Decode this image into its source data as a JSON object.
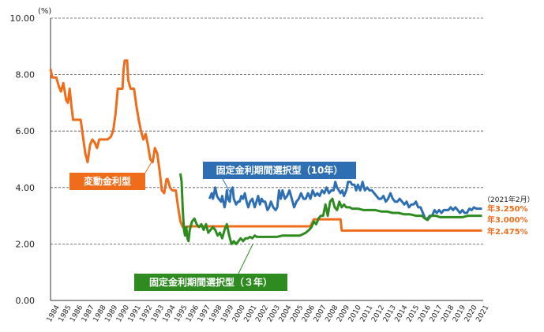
{
  "chart_data": {
    "type": "line",
    "title": "",
    "xlabel": "",
    "ylabel": "",
    "y_unit": "(%)",
    "ylim": [
      0,
      10
    ],
    "y_ticks": [
      "0.00",
      "2.00",
      "4.00",
      "6.00",
      "8.00",
      "10.00"
    ],
    "xlim": [
      1984,
      2021.3
    ],
    "x_ticks": [
      "1984",
      "1985",
      "1986",
      "1987",
      "1988",
      "1989",
      "1990",
      "1991",
      "1992",
      "1993",
      "1994",
      "1995",
      "1996",
      "1997",
      "1998",
      "1999",
      "2000",
      "2001",
      "2002",
      "2003",
      "2004",
      "2005",
      "2006",
      "2007",
      "2008",
      "2009",
      "2010",
      "2011",
      "2012",
      "2013",
      "2014",
      "2015",
      "2016",
      "2017",
      "2018",
      "2019",
      "2020",
      "2021"
    ],
    "grid": "horizontal dashed",
    "series": [
      {
        "name": "変動金利型",
        "color": "#ee6c1a",
        "end_label": "年2.475%",
        "points": [
          [
            1984.0,
            8.2
          ],
          [
            1984.15,
            7.9
          ],
          [
            1984.5,
            7.9
          ],
          [
            1984.7,
            7.6
          ],
          [
            1984.9,
            7.4
          ],
          [
            1985.1,
            7.7
          ],
          [
            1985.35,
            7.1
          ],
          [
            1985.5,
            7.0
          ],
          [
            1985.65,
            7.5
          ],
          [
            1985.8,
            6.9
          ],
          [
            1985.95,
            6.4
          ],
          [
            1986.3,
            6.4
          ],
          [
            1986.6,
            6.4
          ],
          [
            1986.8,
            5.8
          ],
          [
            1987.0,
            5.2
          ],
          [
            1987.2,
            4.9
          ],
          [
            1987.4,
            5.5
          ],
          [
            1987.6,
            5.7
          ],
          [
            1987.8,
            5.6
          ],
          [
            1988.0,
            5.4
          ],
          [
            1988.2,
            5.7
          ],
          [
            1988.9,
            5.7
          ],
          [
            1989.2,
            5.8
          ],
          [
            1989.4,
            6.0
          ],
          [
            1989.6,
            6.6
          ],
          [
            1989.8,
            7.5
          ],
          [
            1990.2,
            7.5
          ],
          [
            1990.3,
            8.2
          ],
          [
            1990.4,
            8.5
          ],
          [
            1990.6,
            8.5
          ],
          [
            1990.7,
            7.8
          ],
          [
            1990.9,
            7.5
          ],
          [
            1991.2,
            7.5
          ],
          [
            1991.4,
            6.9
          ],
          [
            1991.6,
            6.4
          ],
          [
            1991.8,
            6.0
          ],
          [
            1992.0,
            5.7
          ],
          [
            1992.2,
            5.9
          ],
          [
            1992.4,
            5.5
          ],
          [
            1992.6,
            5.0
          ],
          [
            1992.8,
            4.9
          ],
          [
            1993.0,
            5.4
          ],
          [
            1993.2,
            5.2
          ],
          [
            1993.4,
            4.6
          ],
          [
            1993.6,
            3.9
          ],
          [
            1993.8,
            3.8
          ],
          [
            1994.0,
            4.3
          ],
          [
            1994.1,
            4.3
          ],
          [
            1994.3,
            4.0
          ],
          [
            1994.5,
            3.9
          ],
          [
            1994.8,
            3.9
          ],
          [
            1995.0,
            3.3
          ],
          [
            1995.2,
            2.8
          ],
          [
            1995.4,
            2.6
          ],
          [
            1995.6,
            2.6
          ],
          [
            1996.0,
            2.625
          ],
          [
            2006.4,
            2.625
          ],
          [
            2006.7,
            2.875
          ],
          [
            2007.3,
            2.875
          ],
          [
            2008.2,
            2.875
          ],
          [
            2009.0,
            2.875
          ],
          [
            2009.1,
            2.475
          ],
          [
            2021.2,
            2.475
          ]
        ]
      },
      {
        "name": "固定金利期間選択型（10年）",
        "color": "#2e6fb4",
        "end_label": "年3.250%",
        "points": [
          [
            1997.7,
            3.6
          ],
          [
            1997.9,
            3.8
          ],
          [
            1998.0,
            3.6
          ],
          [
            1998.1,
            3.8
          ],
          [
            1998.2,
            4.0
          ],
          [
            1998.35,
            3.7
          ],
          [
            1998.5,
            3.6
          ],
          [
            1998.7,
            3.5
          ],
          [
            1998.8,
            3.7
          ],
          [
            1999.0,
            3.3
          ],
          [
            1999.1,
            3.5
          ],
          [
            1999.2,
            3.9
          ],
          [
            1999.3,
            3.6
          ],
          [
            1999.45,
            3.5
          ],
          [
            1999.55,
            3.9
          ],
          [
            1999.7,
            4.0
          ],
          [
            1999.8,
            3.6
          ],
          [
            2000.0,
            3.4
          ],
          [
            2000.15,
            3.5
          ],
          [
            2000.3,
            3.5
          ],
          [
            2000.45,
            3.7
          ],
          [
            2000.6,
            3.6
          ],
          [
            2000.75,
            3.8
          ],
          [
            2000.9,
            3.5
          ],
          [
            2001.05,
            3.3
          ],
          [
            2001.2,
            3.5
          ],
          [
            2001.4,
            3.6
          ],
          [
            2001.6,
            3.3
          ],
          [
            2001.75,
            3.5
          ],
          [
            2001.9,
            3.7
          ],
          [
            2002.05,
            3.4
          ],
          [
            2002.2,
            3.6
          ],
          [
            2002.35,
            3.5
          ],
          [
            2002.5,
            3.5
          ],
          [
            2002.7,
            3.2
          ],
          [
            2002.85,
            3.3
          ],
          [
            2003.0,
            3.5
          ],
          [
            2003.2,
            3.3
          ],
          [
            2003.4,
            3.2
          ],
          [
            2003.55,
            3.3
          ],
          [
            2003.7,
            3.9
          ],
          [
            2003.85,
            3.6
          ],
          [
            2004.0,
            3.9
          ],
          [
            2004.2,
            3.6
          ],
          [
            2004.4,
            3.7
          ],
          [
            2004.6,
            3.9
          ],
          [
            2004.8,
            3.6
          ],
          [
            2005.0,
            3.3
          ],
          [
            2005.2,
            3.5
          ],
          [
            2005.4,
            3.6
          ],
          [
            2005.6,
            3.8
          ],
          [
            2005.8,
            3.6
          ],
          [
            2006.0,
            3.6
          ],
          [
            2006.2,
            3.8
          ],
          [
            2006.4,
            3.6
          ],
          [
            2006.6,
            3.9
          ],
          [
            2006.8,
            3.7
          ],
          [
            2007.0,
            3.8
          ],
          [
            2007.2,
            3.7
          ],
          [
            2007.4,
            3.9
          ],
          [
            2007.6,
            3.8
          ],
          [
            2007.8,
            4.0
          ],
          [
            2008.0,
            3.8
          ],
          [
            2008.2,
            3.9
          ],
          [
            2008.4,
            3.9
          ],
          [
            2008.55,
            4.2
          ],
          [
            2008.7,
            4.0
          ],
          [
            2008.85,
            3.9
          ],
          [
            2009.0,
            3.8
          ],
          [
            2009.15,
            3.9
          ],
          [
            2009.3,
            3.7
          ],
          [
            2009.5,
            3.9
          ],
          [
            2009.65,
            4.2
          ],
          [
            2009.85,
            4.2
          ],
          [
            2010.0,
            4.1
          ],
          [
            2010.2,
            4.1
          ],
          [
            2010.35,
            3.9
          ],
          [
            2010.5,
            4.1
          ],
          [
            2010.7,
            3.9
          ],
          [
            2010.9,
            4.2
          ],
          [
            2011.1,
            3.9
          ],
          [
            2011.3,
            4.0
          ],
          [
            2011.5,
            3.9
          ],
          [
            2011.7,
            3.9
          ],
          [
            2011.9,
            3.8
          ],
          [
            2012.1,
            3.7
          ],
          [
            2012.3,
            3.6
          ],
          [
            2012.5,
            3.6
          ],
          [
            2012.7,
            3.7
          ],
          [
            2012.9,
            3.5
          ],
          [
            2013.1,
            3.6
          ],
          [
            2013.3,
            3.8
          ],
          [
            2013.5,
            3.6
          ],
          [
            2013.7,
            3.5
          ],
          [
            2013.9,
            3.5
          ],
          [
            2014.1,
            3.6
          ],
          [
            2014.3,
            3.5
          ],
          [
            2014.5,
            3.4
          ],
          [
            2014.7,
            3.5
          ],
          [
            2014.9,
            3.3
          ],
          [
            2015.1,
            3.4
          ],
          [
            2015.3,
            3.4
          ],
          [
            2015.5,
            3.5
          ],
          [
            2015.7,
            3.3
          ],
          [
            2015.9,
            3.3
          ],
          [
            2016.1,
            3.1
          ],
          [
            2016.3,
            2.9
          ],
          [
            2016.5,
            2.9
          ],
          [
            2016.7,
            3.0
          ],
          [
            2016.9,
            3.0
          ],
          [
            2017.1,
            3.2
          ],
          [
            2017.3,
            3.1
          ],
          [
            2017.5,
            3.2
          ],
          [
            2017.7,
            3.1
          ],
          [
            2017.9,
            3.2
          ],
          [
            2018.1,
            3.2
          ],
          [
            2018.3,
            3.2
          ],
          [
            2018.5,
            3.3
          ],
          [
            2018.7,
            3.2
          ],
          [
            2018.9,
            3.3
          ],
          [
            2019.1,
            3.2
          ],
          [
            2019.3,
            3.1
          ],
          [
            2019.5,
            3.2
          ],
          [
            2019.7,
            3.1
          ],
          [
            2019.9,
            3.1
          ],
          [
            2020.1,
            3.25
          ],
          [
            2020.3,
            3.2
          ],
          [
            2020.5,
            3.3
          ],
          [
            2020.7,
            3.25
          ],
          [
            2021.2,
            3.25
          ]
        ]
      },
      {
        "name": "固定金利期間選択型（３年）",
        "color": "#2e8b1f",
        "end_label": "年3.000%",
        "points": [
          [
            1995.2,
            4.5
          ],
          [
            1995.3,
            4.2
          ],
          [
            1995.4,
            3.2
          ],
          [
            1995.5,
            2.5
          ],
          [
            1995.6,
            2.3
          ],
          [
            1995.7,
            2.6
          ],
          [
            1995.8,
            2.2
          ],
          [
            1995.9,
            2.1
          ],
          [
            1996.0,
            2.5
          ],
          [
            1996.2,
            2.8
          ],
          [
            1996.4,
            2.9
          ],
          [
            1996.6,
            2.7
          ],
          [
            1996.8,
            2.6
          ],
          [
            1997.0,
            2.7
          ],
          [
            1997.2,
            2.5
          ],
          [
            1997.4,
            2.7
          ],
          [
            1997.6,
            2.4
          ],
          [
            1997.8,
            2.5
          ],
          [
            1998.0,
            2.6
          ],
          [
            1998.2,
            2.5
          ],
          [
            1998.4,
            2.3
          ],
          [
            1998.6,
            2.4
          ],
          [
            1998.8,
            2.2
          ],
          [
            1999.0,
            2.5
          ],
          [
            1999.2,
            2.7
          ],
          [
            1999.4,
            2.3
          ],
          [
            1999.6,
            2.0
          ],
          [
            1999.8,
            2.1
          ],
          [
            2000.0,
            2.0
          ],
          [
            2000.2,
            2.1
          ],
          [
            2000.4,
            2.2
          ],
          [
            2000.6,
            2.1
          ],
          [
            2000.8,
            2.2
          ],
          [
            2001.0,
            2.2
          ],
          [
            2001.2,
            2.25
          ],
          [
            2001.4,
            2.2
          ],
          [
            2001.6,
            2.3
          ],
          [
            2001.8,
            2.25
          ],
          [
            2002.5,
            2.25
          ],
          [
            2003.0,
            2.25
          ],
          [
            2003.5,
            2.25
          ],
          [
            2004.0,
            2.3
          ],
          [
            2004.5,
            2.3
          ],
          [
            2005.0,
            2.3
          ],
          [
            2005.5,
            2.3
          ],
          [
            2006.0,
            2.4
          ],
          [
            2006.3,
            2.5
          ],
          [
            2006.5,
            2.6
          ],
          [
            2006.7,
            2.8
          ],
          [
            2006.9,
            2.7
          ],
          [
            2007.1,
            2.9
          ],
          [
            2007.3,
            3.0
          ],
          [
            2007.5,
            3.0
          ],
          [
            2007.7,
            3.4
          ],
          [
            2007.9,
            3.0
          ],
          [
            2008.1,
            3.5
          ],
          [
            2008.3,
            3.6
          ],
          [
            2008.5,
            3.3
          ],
          [
            2008.7,
            3.2
          ],
          [
            2008.9,
            3.5
          ],
          [
            2009.1,
            3.3
          ],
          [
            2009.3,
            3.4
          ],
          [
            2009.5,
            3.3
          ],
          [
            2009.8,
            3.3
          ],
          [
            2010.0,
            3.25
          ],
          [
            2010.5,
            3.25
          ],
          [
            2011.0,
            3.2
          ],
          [
            2011.5,
            3.2
          ],
          [
            2012.0,
            3.2
          ],
          [
            2012.5,
            3.15
          ],
          [
            2013.0,
            3.15
          ],
          [
            2013.5,
            3.1
          ],
          [
            2014.0,
            3.1
          ],
          [
            2014.5,
            3.05
          ],
          [
            2015.0,
            3.05
          ],
          [
            2015.5,
            3.0
          ],
          [
            2016.0,
            3.0
          ],
          [
            2016.3,
            2.9
          ],
          [
            2016.5,
            2.85
          ],
          [
            2016.8,
            3.0
          ],
          [
            2017.2,
            3.0
          ],
          [
            2017.6,
            2.95
          ],
          [
            2018.0,
            2.95
          ],
          [
            2018.5,
            2.95
          ],
          [
            2019.0,
            2.95
          ],
          [
            2019.5,
            2.95
          ],
          [
            2020.0,
            3.0
          ],
          [
            2020.5,
            3.0
          ],
          [
            2021.2,
            3.0
          ]
        ]
      }
    ],
    "annotations": {
      "date_note": "（2021年2月）",
      "callouts": [
        {
          "series": 0,
          "text": "変動金利型"
        },
        {
          "series": 1,
          "text": "固定金利期間選択型（10年）"
        },
        {
          "series": 2,
          "text": "固定金利期間選択型（３年）"
        }
      ]
    }
  }
}
